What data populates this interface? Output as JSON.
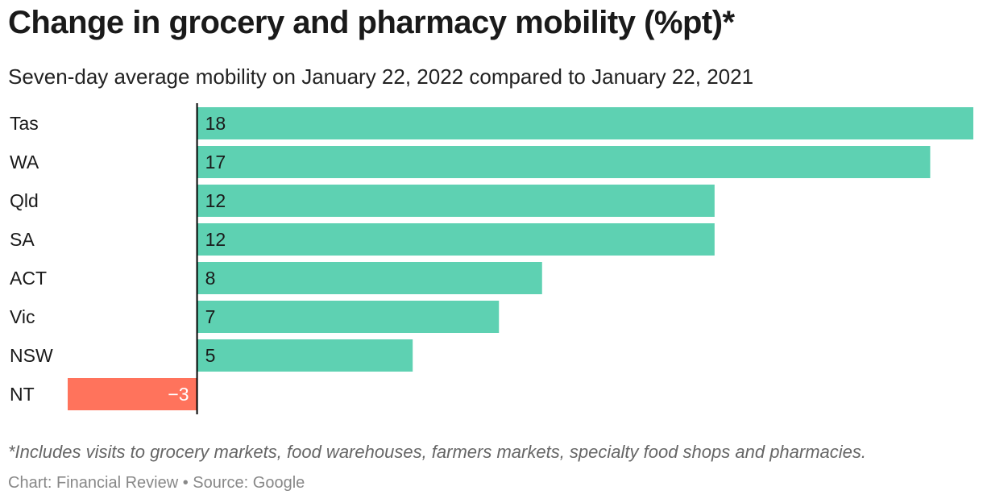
{
  "header": {
    "title": "Change in grocery and pharmacy mobility (%pt)*",
    "subtitle": "Seven-day average mobility on January 22, 2022 compared to January 22, 2021"
  },
  "footer": {
    "footnote": "*Includes visits to grocery markets, food warehouses, farmers markets, specialty food shops and pharmacies.",
    "credit": "Chart: Financial Review • Source: Google"
  },
  "colors": {
    "positive": "#5ed1b2",
    "negative": "#ff735c",
    "axis": "#000000",
    "label": "#1a1a1a",
    "negative_label": "#ffffff"
  },
  "chart_data": {
    "type": "bar",
    "orientation": "horizontal",
    "categories": [
      "Tas",
      "WA",
      "Qld",
      "SA",
      "ACT",
      "Vic",
      "NSW",
      "NT"
    ],
    "values": [
      18,
      17,
      12,
      12,
      8,
      7,
      5,
      -3
    ],
    "value_labels": [
      "18",
      "17",
      "12",
      "12",
      "8",
      "7",
      "5",
      "−3"
    ],
    "xlim": [
      -3,
      18
    ],
    "grid": false,
    "legend": "none"
  }
}
